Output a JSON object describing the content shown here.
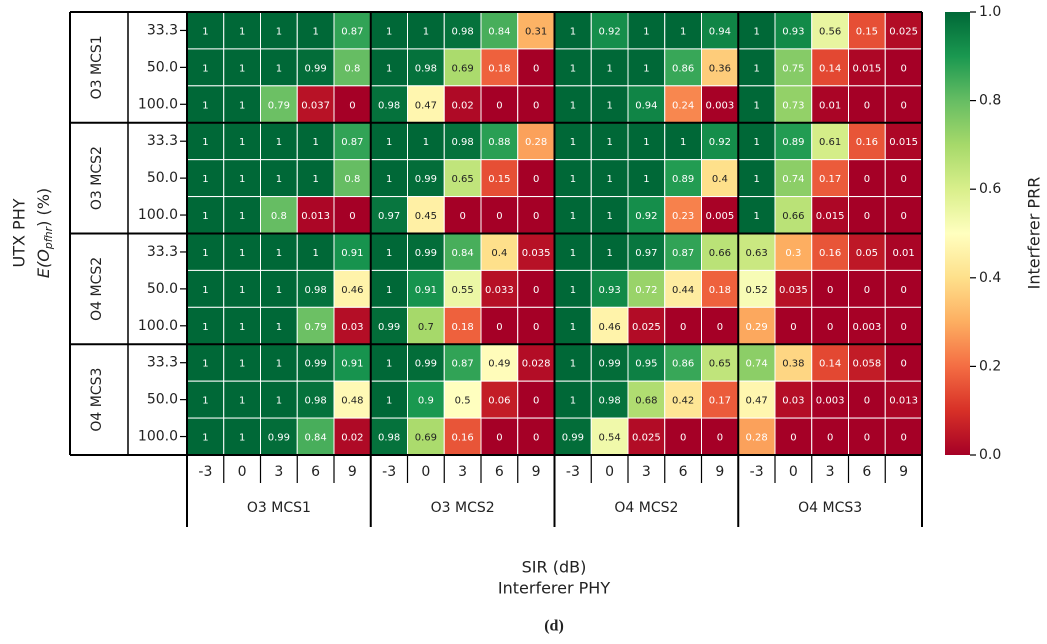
{
  "chart_data": {
    "type": "heatmap",
    "ylabel": "UTX PHY",
    "ylabel2": {
      "main": "E(O",
      "sub": "pfhr",
      "tail": ") (%)"
    },
    "xlabel": "SIR (dB)",
    "xlabel2": "Interferer PHY",
    "caption": "(d)",
    "row_groups": [
      "O3 MCS1",
      "O3 MCS2",
      "O4 MCS2",
      "O4 MCS3"
    ],
    "row_labels": [
      "33.3",
      "50.0",
      "100.0"
    ],
    "col_groups": [
      "O3 MCS1",
      "O3 MCS2",
      "O4 MCS2",
      "O4 MCS3"
    ],
    "col_labels": [
      -3,
      0,
      3,
      6,
      9
    ],
    "values": [
      [
        1,
        1,
        1,
        1,
        0.87,
        1,
        1,
        0.98,
        0.84,
        0.31,
        1,
        0.92,
        1,
        1,
        0.94,
        1,
        0.93,
        0.56,
        0.15,
        0.025
      ],
      [
        1,
        1,
        1,
        0.99,
        0.8,
        1,
        0.98,
        0.69,
        0.18,
        0,
        1,
        1,
        1,
        0.86,
        0.36,
        1,
        0.75,
        0.14,
        0.015,
        0
      ],
      [
        1,
        1,
        0.79,
        0.037,
        0,
        0.98,
        0.47,
        0.02,
        0,
        0,
        1,
        1,
        0.94,
        0.24,
        0.003,
        1,
        0.73,
        0.01,
        0,
        0
      ],
      [
        1,
        1,
        1,
        1,
        0.87,
        1,
        1,
        0.98,
        0.88,
        0.28,
        1,
        1,
        1,
        1,
        0.92,
        1,
        0.89,
        0.61,
        0.16,
        0.015
      ],
      [
        1,
        1,
        1,
        1,
        0.8,
        1,
        0.99,
        0.65,
        0.15,
        0,
        1,
        1,
        1,
        0.89,
        0.4,
        1,
        0.74,
        0.17,
        0,
        0
      ],
      [
        1,
        1,
        0.8,
        0.013,
        0,
        0.97,
        0.45,
        0,
        0,
        0,
        1,
        1,
        0.92,
        0.23,
        0.005,
        1,
        0.66,
        0.015,
        0,
        0
      ],
      [
        1,
        1,
        1,
        1,
        0.91,
        1,
        0.99,
        0.84,
        0.4,
        0.035,
        1,
        1,
        0.97,
        0.87,
        0.66,
        0.63,
        0.3,
        0.16,
        0.05,
        0.01
      ],
      [
        1,
        1,
        1,
        0.98,
        0.46,
        1,
        0.91,
        0.55,
        0.033,
        0,
        1,
        0.93,
        0.72,
        0.44,
        0.18,
        0.52,
        0.035,
        0,
        0,
        0
      ],
      [
        1,
        1,
        1,
        0.79,
        0.03,
        0.99,
        0.7,
        0.18,
        0,
        0,
        1,
        0.46,
        0.025,
        0,
        0,
        0.29,
        0,
        0,
        0.003,
        0
      ],
      [
        1,
        1,
        1,
        0.99,
        0.91,
        1,
        0.99,
        0.87,
        0.49,
        0.028,
        1,
        0.99,
        0.95,
        0.86,
        0.65,
        0.74,
        0.38,
        0.14,
        0.058,
        0
      ],
      [
        1,
        1,
        1,
        0.98,
        0.48,
        1,
        0.9,
        0.5,
        0.06,
        0,
        1,
        0.98,
        0.68,
        0.42,
        0.17,
        0.47,
        0.03,
        0.003,
        0,
        0.013
      ],
      [
        1,
        1,
        0.99,
        0.84,
        0.02,
        0.98,
        0.69,
        0.16,
        0,
        0,
        0.99,
        0.54,
        0.025,
        0,
        0,
        0.28,
        0,
        0,
        0,
        0
      ]
    ],
    "colorbar_label": "Interferer PRR",
    "clim": [
      0,
      1
    ],
    "cticks": [
      {
        "value": 0,
        "label": "0.0"
      },
      {
        "value": 0.2,
        "label": "0.2"
      },
      {
        "value": 0.4,
        "label": "0.4"
      },
      {
        "value": 0.6,
        "label": "0.6"
      },
      {
        "value": 0.8,
        "label": "0.8"
      },
      {
        "value": 1,
        "label": "1.0"
      }
    ],
    "colormap": [
      "#a50026",
      "#d73027",
      "#f46d43",
      "#fdae61",
      "#fee08b",
      "#ffffbf",
      "#d9ef8b",
      "#a6d96a",
      "#66bd63",
      "#1a9850",
      "#006837"
    ]
  }
}
